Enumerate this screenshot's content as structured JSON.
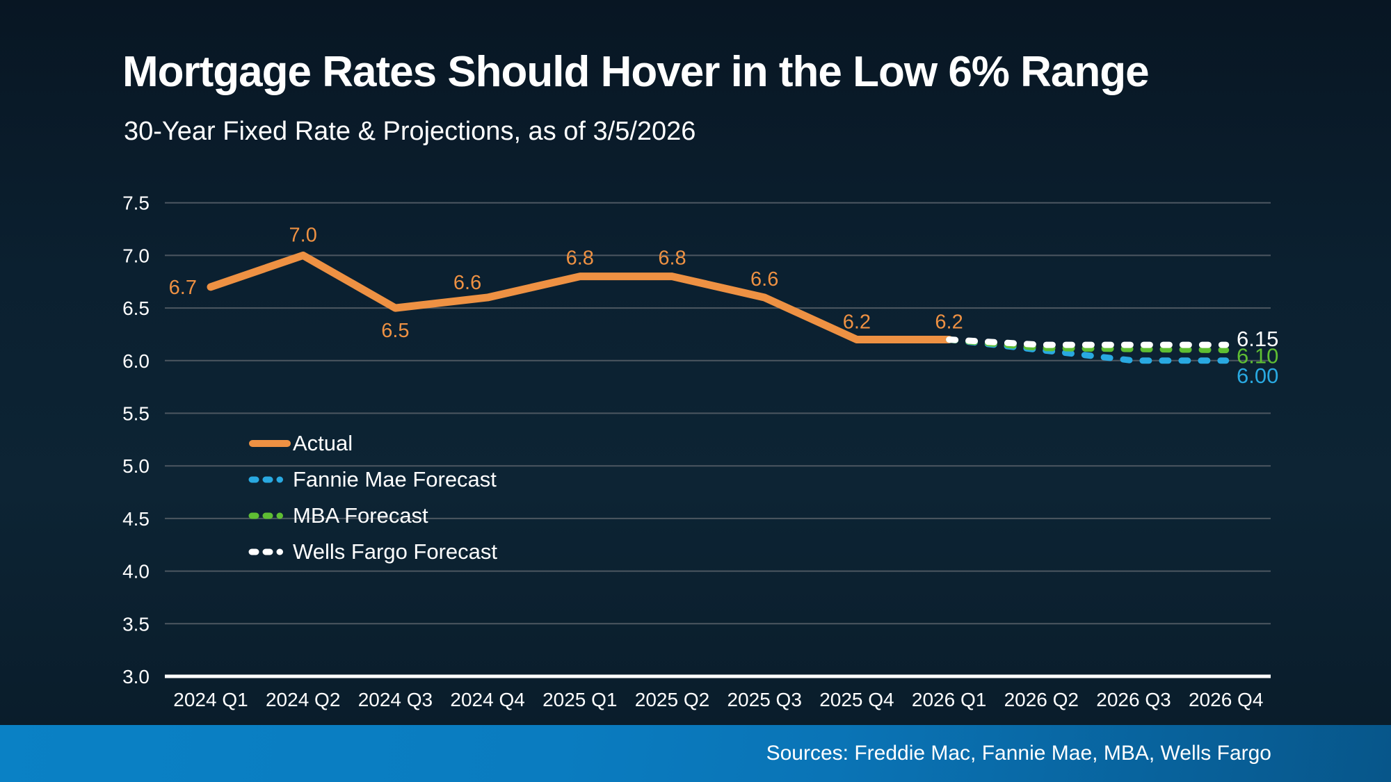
{
  "slide": {
    "title": "Mortgage Rates Should Hover in the Low 6% Range",
    "subtitle": "30-Year Fixed Rate & Projections, as of 3/5/2026",
    "source_text": "Sources: Freddie Mac, Fannie Mae, MBA, Wells Fargo"
  },
  "colors": {
    "background": "#0B2130",
    "gridline": "#4D5761",
    "axis_line": "#FFFFFF",
    "text": "#FFFFFF",
    "footer_blue_left": "#0A81C5",
    "footer_blue_right": "#07568A"
  },
  "chart_data": {
    "type": "line",
    "title": "Mortgage Rates Should Hover in the Low 6% Range",
    "subtitle": "30-Year Fixed Rate & Projections, as of 3/5/2026",
    "categories": [
      "2024 Q1",
      "2024 Q2",
      "2024 Q3",
      "2024 Q4",
      "2025 Q1",
      "2025 Q2",
      "2025 Q3",
      "2025 Q4",
      "2026 Q1",
      "2026 Q2",
      "2026 Q3",
      "2026 Q4"
    ],
    "ylim": [
      3.0,
      7.5
    ],
    "y_tick_labels": [
      "7.5",
      "7.0",
      "6.5",
      "6.0",
      "5.5",
      "5.0",
      "4.5",
      "4.0",
      "3.5",
      "3.0"
    ],
    "grid": "horizontal gridlines, white baseline at 3.0",
    "legend_position": "inside left, middle of plot",
    "series": [
      {
        "name": "Actual",
        "line_style": "solid",
        "color": "#EE9143",
        "start_index": 0,
        "values": [
          6.7,
          7.0,
          6.5,
          6.6,
          6.8,
          6.8,
          6.6,
          6.2,
          6.2
        ],
        "point_labels": [
          "6.7",
          "7.0",
          "6.5",
          "6.6",
          "6.8",
          "6.8",
          "6.6",
          "6.2",
          "6.2"
        ]
      },
      {
        "name": "Fannie Mae Forecast",
        "line_style": "dashed",
        "color": "#29A9E1",
        "start_index": 8,
        "values": [
          6.2,
          6.1,
          6.0,
          6.0
        ],
        "end_label": "6.00"
      },
      {
        "name": "MBA Forecast",
        "line_style": "dashed",
        "color": "#5FBE33",
        "start_index": 8,
        "values": [
          6.2,
          6.12,
          6.11,
          6.1
        ],
        "end_label": "6.10"
      },
      {
        "name": "Wells Fargo Forecast",
        "line_style": "dashed",
        "color": "#FFFFFF",
        "start_index": 8,
        "values": [
          6.2,
          6.15,
          6.15,
          6.15
        ],
        "end_label": "6.15"
      }
    ]
  }
}
